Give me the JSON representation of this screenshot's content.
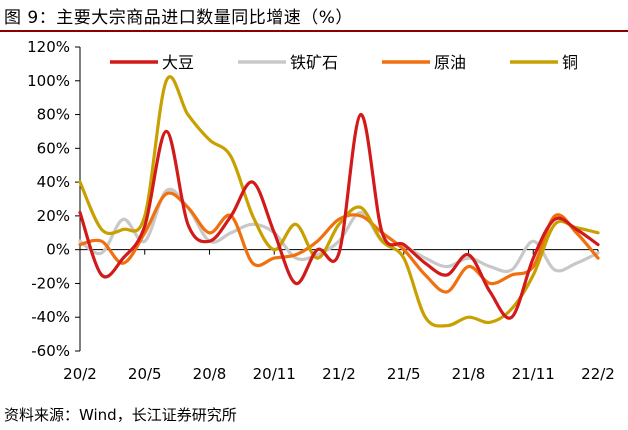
{
  "title": "图 9：主要大宗商品进口数量同比增速（%）",
  "source": "资料来源：Wind，长江证券研究所",
  "chart_data": {
    "type": "line",
    "title": "图 9：主要大宗商品进口数量同比增速（%）",
    "xlabel": "",
    "ylabel": "",
    "ylim": [
      -60,
      120
    ],
    "yticks": [
      -60,
      -40,
      -20,
      0,
      20,
      40,
      60,
      80,
      100,
      120
    ],
    "ytick_labels": [
      "-60%",
      "-40%",
      "-20%",
      "0%",
      "20%",
      "40%",
      "60%",
      "80%",
      "100%",
      "120%"
    ],
    "x": [
      "20/2",
      "20/3",
      "20/4",
      "20/5",
      "20/6",
      "20/7",
      "20/8",
      "20/9",
      "20/10",
      "20/11",
      "20/12",
      "21/1",
      "21/2",
      "21/3",
      "21/4",
      "21/5",
      "21/6",
      "21/7",
      "21/8",
      "21/9",
      "21/10",
      "21/11",
      "21/12",
      "22/1",
      "22/2"
    ],
    "xtick_labels": [
      "20/2",
      "20/5",
      "20/8",
      "20/11",
      "21/2",
      "21/5",
      "21/8",
      "21/11",
      "22/2"
    ],
    "legend_position": "top",
    "series": [
      {
        "name": "大豆",
        "color": "#d21a1a",
        "values": [
          22,
          -15,
          -5,
          14,
          70,
          15,
          5,
          20,
          40,
          10,
          -20,
          0,
          -2,
          80,
          10,
          3,
          -8,
          -15,
          -3,
          -25,
          -40,
          -5,
          18,
          12,
          3
        ]
      },
      {
        "name": "铁矿石",
        "color": "#c8c8c8",
        "values": [
          5,
          -2,
          18,
          5,
          35,
          25,
          5,
          10,
          15,
          10,
          -5,
          -3,
          5,
          22,
          5,
          2,
          -5,
          -10,
          -5,
          -10,
          -12,
          5,
          -12,
          -8,
          -2
        ]
      },
      {
        "name": "原油",
        "color": "#f07010",
        "values": [
          3,
          5,
          -8,
          10,
          33,
          25,
          10,
          20,
          -8,
          -5,
          -3,
          5,
          18,
          20,
          10,
          0,
          -15,
          -25,
          -10,
          -20,
          -15,
          -10,
          20,
          10,
          -5
        ]
      },
      {
        "name": "铜",
        "color": "#c8a000",
        "values": [
          40,
          12,
          12,
          20,
          100,
          80,
          65,
          55,
          20,
          0,
          15,
          -5,
          15,
          25,
          5,
          -5,
          -40,
          -45,
          -40,
          -43,
          -35,
          -15,
          15,
          13,
          10
        ]
      }
    ]
  }
}
